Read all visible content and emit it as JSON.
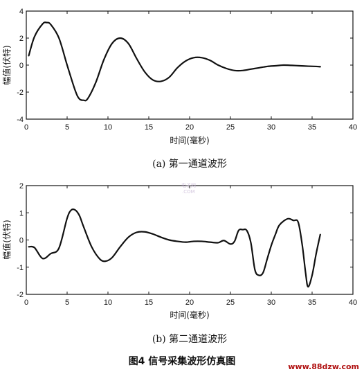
{
  "chart_data": [
    {
      "type": "line",
      "caption": "(a)  第一通道波形",
      "xlabel": "时间(毫秒)",
      "ylabel": "幅值(伏特)",
      "xlim": [
        0,
        40
      ],
      "ylim": [
        -4,
        4
      ],
      "xticks": [
        0,
        5,
        10,
        15,
        20,
        25,
        30,
        35,
        40
      ],
      "yticks": [
        4,
        2,
        0,
        -2,
        -4
      ],
      "grid": false,
      "series": [
        {
          "x": [
            0.3,
            1.0,
            2.0,
            2.5,
            3.0,
            4.0,
            5.0,
            6.0,
            6.5,
            7.0,
            7.5,
            8.5,
            9.5,
            10.5,
            11.5,
            12.5,
            13.5,
            14.5,
            15.5,
            16.5,
            17.5,
            18.5,
            19.5,
            20.5,
            21.5,
            22.5,
            23.5,
            24.5,
            25.5,
            26.5,
            27.5,
            28.5,
            29.5,
            30.5,
            31.5,
            32.5,
            33.5,
            34.5,
            35.5,
            36.0
          ],
          "y": [
            0.7,
            2.1,
            3.05,
            3.15,
            3.0,
            2.0,
            0.0,
            -1.9,
            -2.5,
            -2.6,
            -2.5,
            -1.3,
            0.4,
            1.6,
            2.0,
            1.6,
            0.5,
            -0.5,
            -1.1,
            -1.2,
            -0.9,
            -0.2,
            0.3,
            0.55,
            0.55,
            0.35,
            0.0,
            -0.25,
            -0.4,
            -0.4,
            -0.3,
            -0.2,
            -0.1,
            -0.05,
            0.0,
            -0.02,
            -0.05,
            -0.08,
            -0.1,
            -0.12
          ]
        }
      ]
    },
    {
      "type": "line",
      "caption": "(b)  第二通道波形",
      "xlabel": "时间(毫秒)",
      "ylabel": "幅值(伏特)",
      "xlim": [
        0,
        40
      ],
      "ylim": [
        -2,
        2
      ],
      "xticks": [
        0,
        5,
        10,
        15,
        20,
        25,
        30,
        35,
        40
      ],
      "yticks": [
        2,
        1,
        0,
        -1,
        -2
      ],
      "grid": false,
      "series": [
        {
          "x": [
            0.3,
            1.0,
            2.0,
            3.0,
            4.0,
            5.0,
            5.5,
            6.0,
            6.5,
            7.0,
            8.0,
            9.0,
            9.7,
            10.5,
            11.5,
            12.5,
            13.5,
            14.5,
            15.5,
            16.5,
            17.5,
            18.5,
            19.5,
            20.5,
            21.5,
            22.5,
            23.5,
            24.2,
            25.0,
            25.5,
            26.0,
            26.5,
            27.0,
            27.5,
            28.0,
            28.5,
            29.0,
            29.5,
            30.0,
            30.5,
            31.0,
            32.0,
            32.7,
            33.3,
            33.8,
            34.2,
            34.5,
            35.0,
            35.5,
            36.0
          ],
          "y": [
            -0.25,
            -0.28,
            -0.68,
            -0.5,
            -0.3,
            0.8,
            1.1,
            1.1,
            0.9,
            0.5,
            -0.25,
            -0.7,
            -0.78,
            -0.65,
            -0.25,
            0.1,
            0.28,
            0.3,
            0.22,
            0.1,
            0.0,
            -0.05,
            -0.08,
            -0.05,
            -0.05,
            -0.08,
            -0.1,
            -0.02,
            -0.15,
            -0.05,
            0.35,
            0.38,
            0.35,
            -0.1,
            -1.1,
            -1.3,
            -1.2,
            -0.7,
            -0.2,
            0.2,
            0.55,
            0.78,
            0.72,
            0.65,
            -0.2,
            -1.2,
            -1.72,
            -1.3,
            -0.5,
            0.2
          ]
        }
      ]
    }
  ],
  "figure_caption": "图4   信号采集波形仿真图",
  "watermark": {
    "text": "www.88dzw.com",
    "logo_text": "电子网",
    "logo_subtext": ".COM"
  }
}
